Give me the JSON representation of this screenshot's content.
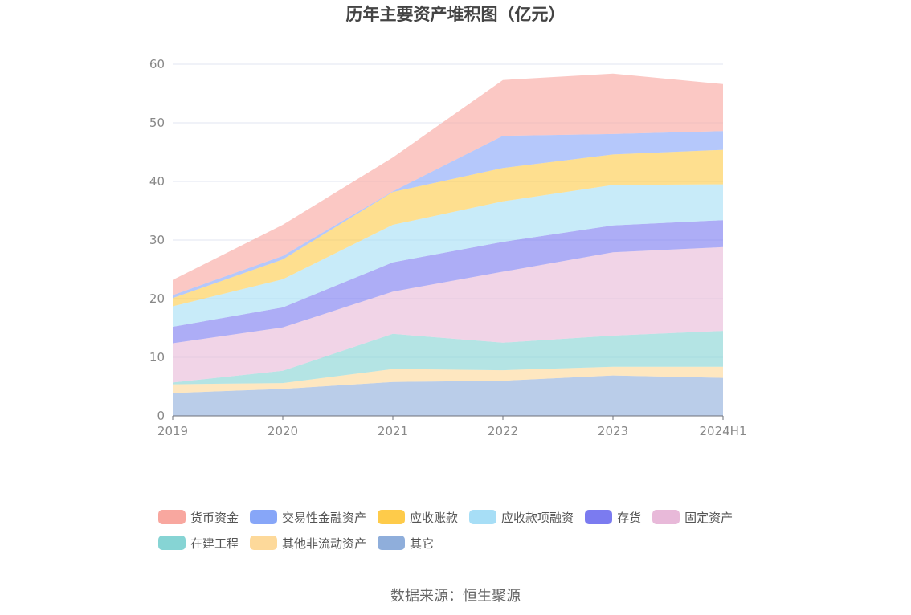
{
  "source": "数据来源：恒生聚源",
  "chart_data": {
    "type": "area",
    "stacked": true,
    "title": "历年主要资产堆积图（亿元）",
    "xlabel": "",
    "ylabel": "",
    "ylim": [
      0,
      60
    ],
    "yticks": [
      0,
      10,
      20,
      30,
      40,
      50,
      60
    ],
    "grid": true,
    "legend_position": "bottom",
    "categories": [
      "2019",
      "2020",
      "2021",
      "2022",
      "2023",
      "2024H1"
    ],
    "series": [
      {
        "name": "其它",
        "color": "#8FAEDB",
        "values": [
          3.9,
          4.6,
          5.8,
          6.0,
          6.9,
          6.5
        ]
      },
      {
        "name": "其他非流动资产",
        "color": "#FDD99A",
        "values": [
          1.5,
          1.0,
          2.2,
          1.8,
          1.5,
          1.9
        ]
      },
      {
        "name": "在建工程",
        "color": "#86D4D4",
        "values": [
          0.3,
          2.1,
          6.0,
          4.7,
          5.3,
          6.1
        ]
      },
      {
        "name": "固定资产",
        "color": "#E8B9D9",
        "values": [
          6.7,
          7.4,
          7.2,
          12.1,
          14.2,
          14.3
        ]
      },
      {
        "name": "存货",
        "color": "#7B7BF0",
        "values": [
          2.8,
          3.4,
          5.0,
          5.1,
          4.6,
          4.6
        ]
      },
      {
        "name": "应收款项融资",
        "color": "#A7DEF6",
        "values": [
          3.5,
          4.8,
          6.4,
          6.9,
          6.9,
          6.1
        ]
      },
      {
        "name": "应收账款",
        "color": "#FECB4A",
        "values": [
          1.4,
          3.4,
          5.6,
          5.7,
          5.2,
          5.9
        ]
      },
      {
        "name": "交易性金融资产",
        "color": "#87A6F8",
        "values": [
          0.5,
          0.6,
          0.1,
          5.5,
          3.5,
          3.2
        ]
      },
      {
        "name": "货币资金",
        "color": "#F8A79F",
        "values": [
          2.6,
          5.3,
          5.8,
          9.5,
          10.3,
          8.0
        ]
      }
    ]
  }
}
